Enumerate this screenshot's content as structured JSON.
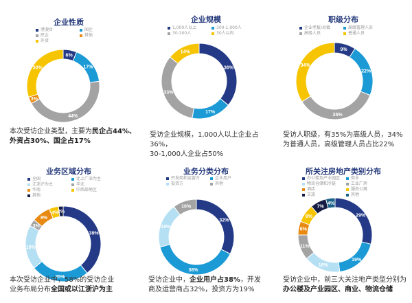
{
  "chart_data": [
    {
      "type": "pie",
      "title": "企业性质",
      "categories": [
        "港澳台",
        "国企",
        "民企",
        "其他",
        "外资"
      ],
      "values": [
        6,
        17,
        44,
        3,
        30
      ],
      "colors": [
        "#243a86",
        "#1b9ad6",
        "#a3a3a3",
        "#e88a12",
        "#f6c400"
      ],
      "order": [
        0,
        1,
        2,
        3,
        4
      ],
      "labels": [
        "6%",
        "17%",
        "44%",
        "3%",
        "30%"
      ],
      "desc": [
        [
          {
            "t": "本次受访企业类型，主要为"
          },
          {
            "t": "民企占44%、",
            "b": true
          }
        ],
        [
          {
            "t": "外资占30%、国企占17%",
            "b": true
          }
        ]
      ]
    },
    {
      "type": "pie",
      "title": "企业规模",
      "categories": [
        "1,000人以上",
        "300-1,000人",
        "30-300人",
        "30人以内"
      ],
      "values": [
        36,
        17,
        33,
        14
      ],
      "colors": [
        "#243a86",
        "#1b9ad6",
        "#a3a3a3",
        "#f6c400"
      ],
      "order": [
        0,
        1,
        2,
        3
      ],
      "labels": [
        "36%",
        "17%",
        "33%",
        "14%"
      ],
      "desc": [
        [
          {
            "t": "受访企业规模，1,000人以上企业占36%，"
          }
        ],
        [
          {
            "t": "30-1,000人企业占50%"
          }
        ]
      ]
    },
    {
      "type": "pie",
      "title": "职级分布",
      "categories": [
        "企业老板/总裁",
        "高级管理人员",
        "高级人员",
        "普通人员"
      ],
      "values": [
        9,
        22,
        35,
        34
      ],
      "colors": [
        "#243a86",
        "#1b9ad6",
        "#a3a3a3",
        "#f6c400"
      ],
      "order": [
        0,
        1,
        2,
        3
      ],
      "labels": [
        "9%",
        "22%",
        "35%",
        "34%"
      ],
      "desc": [
        [
          {
            "t": "受访人职级，有35%为高级人员，34%"
          }
        ],
        [
          {
            "t": "为普通人员，高级管理人员占比22%"
          }
        ]
      ]
    },
    {
      "type": "pie",
      "title": "业务区域分布",
      "categories": [
        "全国",
        "北上广深为主",
        "江浙沪为主",
        "华北",
        "华南",
        "中西部地区",
        "其他"
      ],
      "values": [
        39,
        25,
        19,
        3,
        8,
        4,
        2
      ],
      "colors": [
        "#243a86",
        "#1b9ad6",
        "#b5dff3",
        "#a3a3a3",
        "#e88a12",
        "#f6c400",
        "#161d45"
      ],
      "order": [
        0,
        1,
        2,
        3,
        4,
        5,
        6
      ],
      "labels": [
        "39%",
        "25%",
        "19%",
        "3%",
        "8%",
        "4%",
        "2%"
      ],
      "desc": [
        [
          {
            "t": "本次受访企业中，58%的受访企业"
          }
        ],
        [
          {
            "t": "业务布局分布"
          },
          {
            "t": "全国或以江浙沪为主",
            "b": true
          }
        ]
      ]
    },
    {
      "type": "pie",
      "title": "业务分类分布",
      "categories": [
        "开发商和运营方",
        "企业用户",
        "投资方",
        "其他"
      ],
      "values": [
        32,
        38,
        19,
        10
      ],
      "colors": [
        "#243a86",
        "#1b9ad6",
        "#b5dff3",
        "#a3a3a3"
      ],
      "order": [
        0,
        1,
        2,
        3
      ],
      "labels": [
        "32%",
        "38%",
        "19%",
        "10%"
      ],
      "desc": [
        [
          {
            "t": "受访企业中，"
          },
          {
            "t": "企业用户占38%",
            "b": true
          },
          {
            "t": "，开发"
          }
        ],
        [
          {
            "t": "商及运营商占32%，投资方为19%"
          }
        ]
      ]
    },
    {
      "type": "pie",
      "title": "所关注房地产类别分布",
      "categories": [
        "办公楼及产业园区",
        "商业",
        "物流仓储和冷链",
        "工业厂房",
        "酒店",
        "服务公寓",
        "文旅",
        "其他"
      ],
      "values": [
        29,
        19,
        16,
        11,
        6,
        8,
        7,
        4
      ],
      "colors": [
        "#243a86",
        "#1b9ad6",
        "#b5dff3",
        "#a3a3a3",
        "#e88a12",
        "#f6c400",
        "#161d45",
        "#1a6288"
      ],
      "order": [
        0,
        1,
        2,
        3,
        4,
        5,
        6,
        7
      ],
      "labels": [
        "29%",
        "19%",
        "16%",
        "11%",
        "6%",
        "8%",
        "7%",
        "4%"
      ],
      "desc": [
        [
          {
            "t": "受访企业中，前三大关注地产类型分别为"
          }
        ],
        [
          {
            "t": "办公楼及产业园区、商业、物流仓储",
            "b": true
          }
        ]
      ]
    }
  ]
}
